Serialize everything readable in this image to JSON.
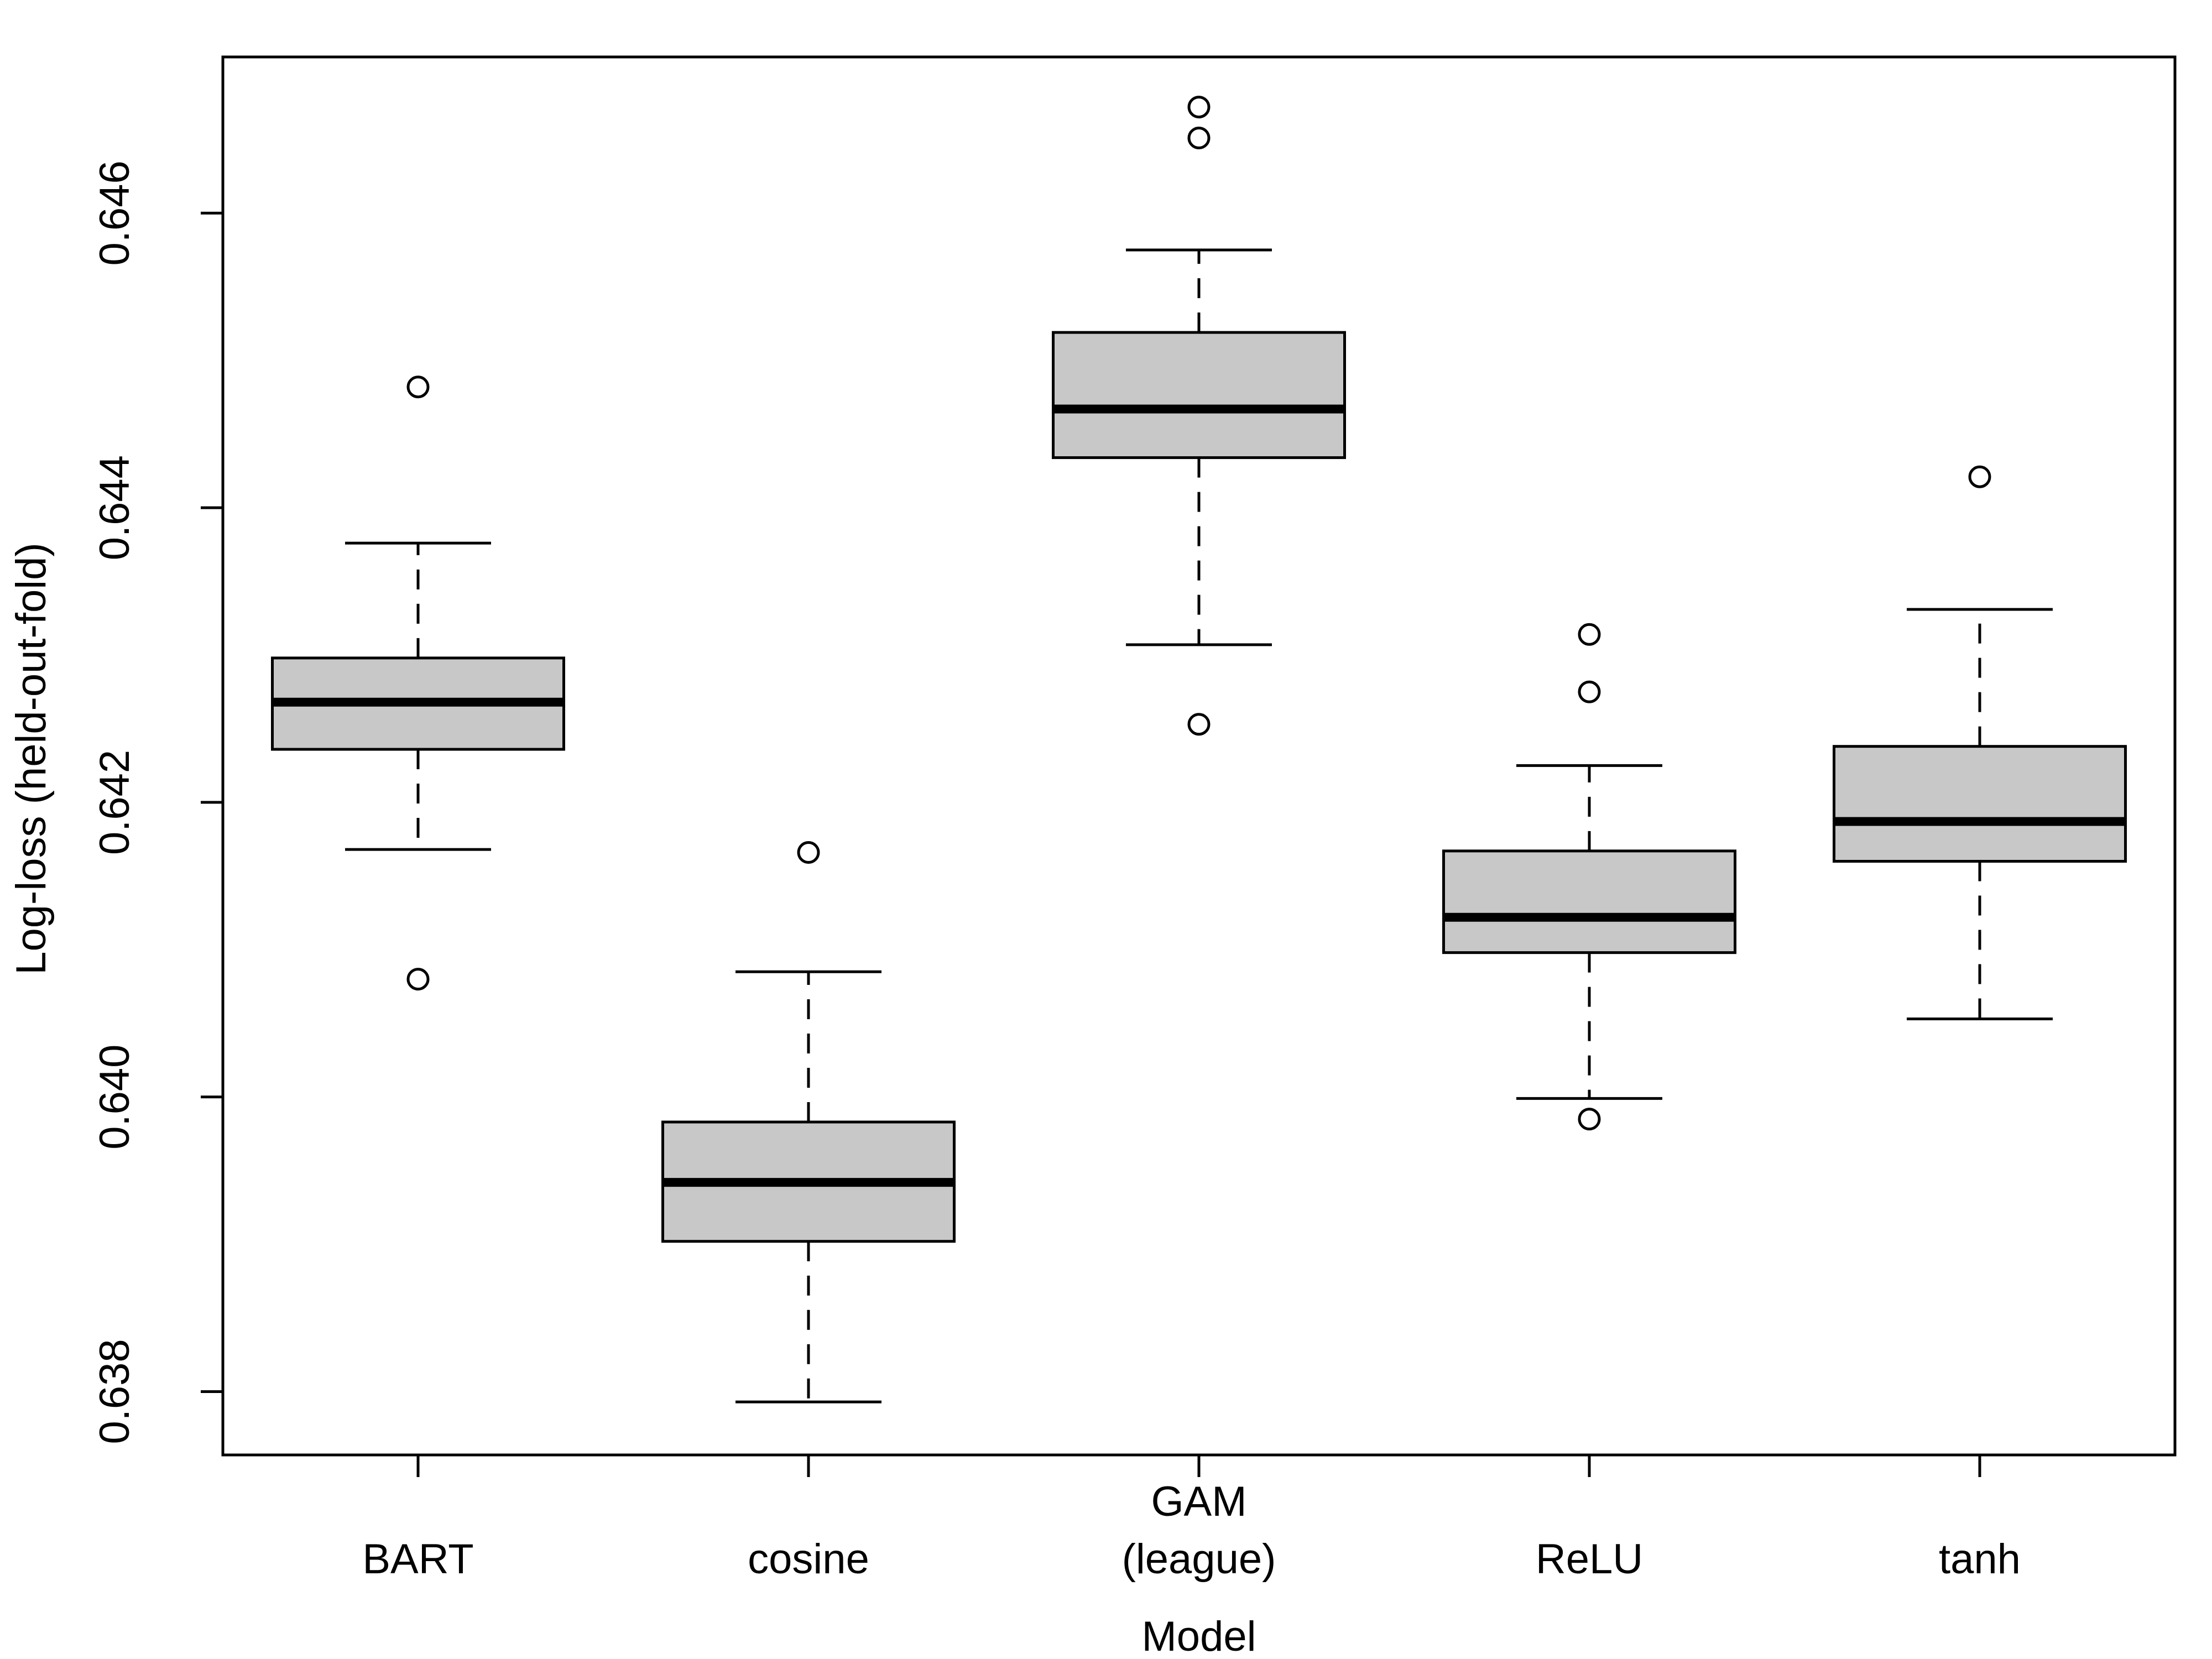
{
  "chart_data": {
    "type": "boxplot",
    "title": "",
    "xlabel": "Model",
    "ylabel": "Log-loss (held-out-fold)",
    "ylim": [
      0.63757,
      0.64706
    ],
    "yticks": [
      0.638,
      0.64,
      0.642,
      0.644,
      0.646
    ],
    "ytick_labels": [
      "0.638",
      "0.640",
      "0.642",
      "0.644",
      "0.646"
    ],
    "grid": false,
    "colors": {
      "box_fill": "#c8c8c8",
      "stroke": "#000000",
      "background": "#ffffff"
    },
    "categories": [
      {
        "label_lines": [
          "BART"
        ],
        "whisker_low": 0.64168,
        "q1": 0.64236,
        "median": 0.64268,
        "q3": 0.64298,
        "whisker_high": 0.64376,
        "outliers": [
          0.64482,
          0.6408
        ]
      },
      {
        "label_lines": [
          "cosine"
        ],
        "whisker_low": 0.63793,
        "q1": 0.63902,
        "median": 0.63942,
        "q3": 0.63983,
        "whisker_high": 0.64085,
        "outliers": [
          0.64166
        ]
      },
      {
        "label_lines": [
          "GAM",
          "(league)"
        ],
        "whisker_low": 0.64307,
        "q1": 0.64434,
        "median": 0.64467,
        "q3": 0.64519,
        "whisker_high": 0.64575,
        "outliers": [
          0.64672,
          0.64651,
          0.64253
        ]
      },
      {
        "label_lines": [
          "ReLU"
        ],
        "whisker_low": 0.63999,
        "q1": 0.64098,
        "median": 0.64122,
        "q3": 0.64167,
        "whisker_high": 0.64225,
        "outliers": [
          0.64314,
          0.64275,
          0.63985
        ]
      },
      {
        "label_lines": [
          "tanh"
        ],
        "whisker_low": 0.64053,
        "q1": 0.6416,
        "median": 0.64187,
        "q3": 0.64238,
        "whisker_high": 0.64331,
        "outliers": [
          0.64421
        ]
      }
    ]
  }
}
